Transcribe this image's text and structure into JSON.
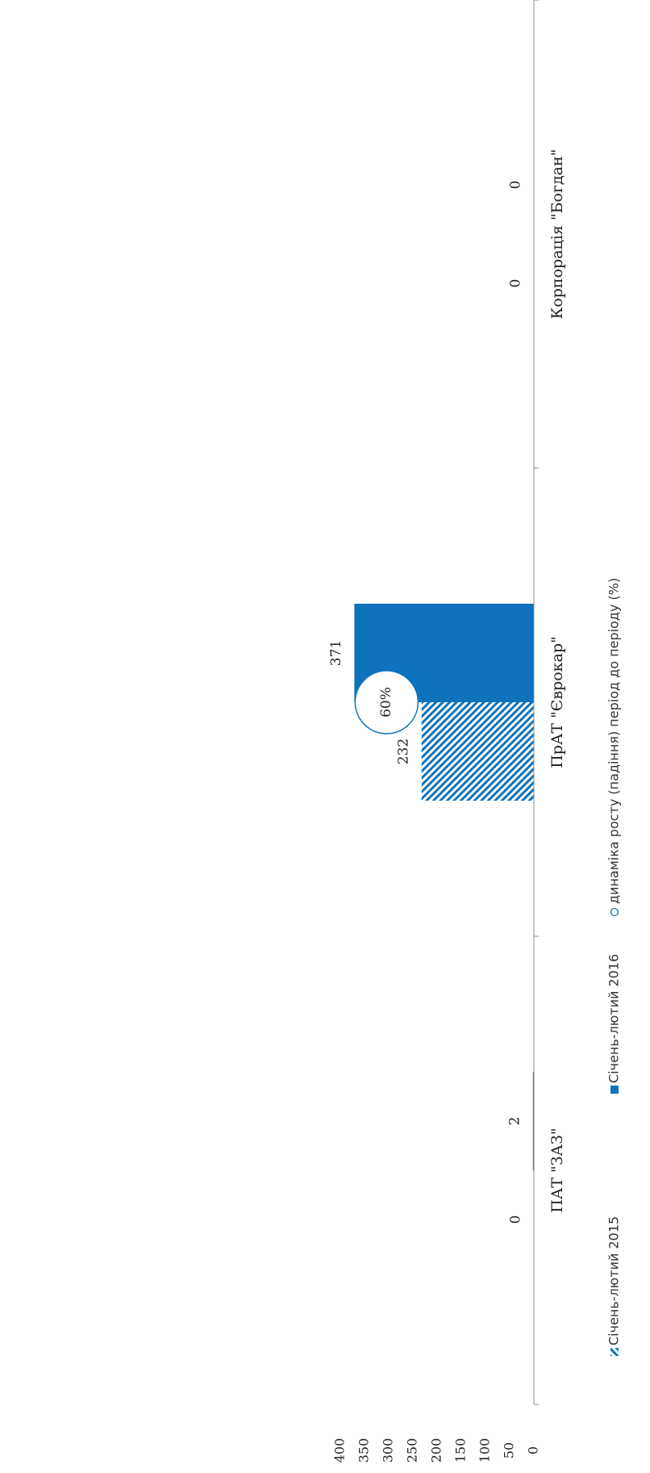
{
  "chart_data": {
    "type": "bar",
    "orientation": "rotated-90",
    "categories": [
      "ПАТ \"ЗАЗ\"",
      "ПрАТ \"Єврокар\"",
      "Корпорація \"Богдан\""
    ],
    "series": [
      {
        "name": "Січень-лютий 2015",
        "values": [
          0,
          232,
          0
        ],
        "value_labels": [
          "0",
          "232",
          "0"
        ],
        "fill": "hatched",
        "color": "#0e72bd"
      },
      {
        "name": "Січень-лютий 2016",
        "values": [
          2,
          371,
          0
        ],
        "value_labels": [
          "2",
          "371",
          "0"
        ],
        "fill": "solid",
        "color": "#0e72bd"
      }
    ],
    "growth": {
      "name": "динаміка росту (падіння) період до періоду (%)",
      "points": [
        {
          "category_index": 1,
          "label": "60%"
        }
      ]
    },
    "value_axis": {
      "min": 0,
      "max": 400,
      "ticks": [
        "0",
        "50",
        "100",
        "150",
        "200",
        "250",
        "300",
        "350",
        "400"
      ]
    },
    "legend_position": "bottom",
    "grid": false
  },
  "colors": {
    "bar": "#0e72bd",
    "axis": "#8c8c8c",
    "text": "#222222"
  }
}
